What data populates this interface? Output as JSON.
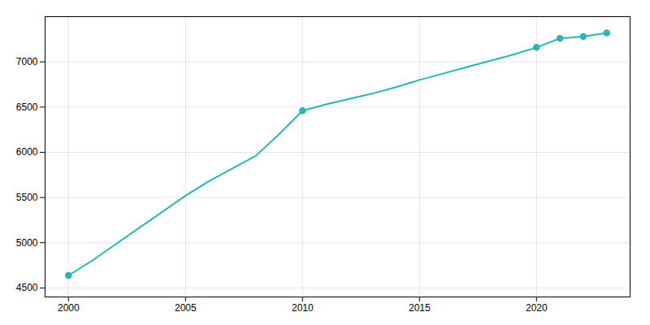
{
  "chart_data": {
    "type": "line",
    "series": [
      {
        "type": "line",
        "line_style": "solid",
        "color": "#2ab5b5",
        "x": [
          2000,
          2001,
          2002,
          2003,
          2004,
          2005,
          2006,
          2007,
          2008,
          2009,
          2010,
          2011,
          2012,
          2013,
          2014,
          2015,
          2016,
          2017,
          2018,
          2019,
          2020,
          2021,
          2022,
          2023
        ],
        "values": [
          4638,
          4800,
          4980,
          5160,
          5340,
          5520,
          5680,
          5820,
          5960,
          6200,
          6460,
          6530,
          6590,
          6650,
          6720,
          6800,
          6870,
          6940,
          7010,
          7080,
          7160,
          7260,
          7280,
          7320
        ]
      },
      {
        "type": "scatter",
        "marker": "circle",
        "color": "#2ab5b5",
        "x": [
          2000,
          2010,
          2020,
          2021,
          2022,
          2023
        ],
        "values": [
          4638,
          6460,
          7160,
          7260,
          7280,
          7320
        ]
      }
    ],
    "xlim": [
      1999,
      2024
    ],
    "xticks": [
      2000,
      2005,
      2010,
      2015,
      2020
    ],
    "ylim": [
      4400,
      7500
    ],
    "yticks": [
      4500,
      5000,
      5500,
      6000,
      6500,
      7000
    ],
    "grid": true
  }
}
